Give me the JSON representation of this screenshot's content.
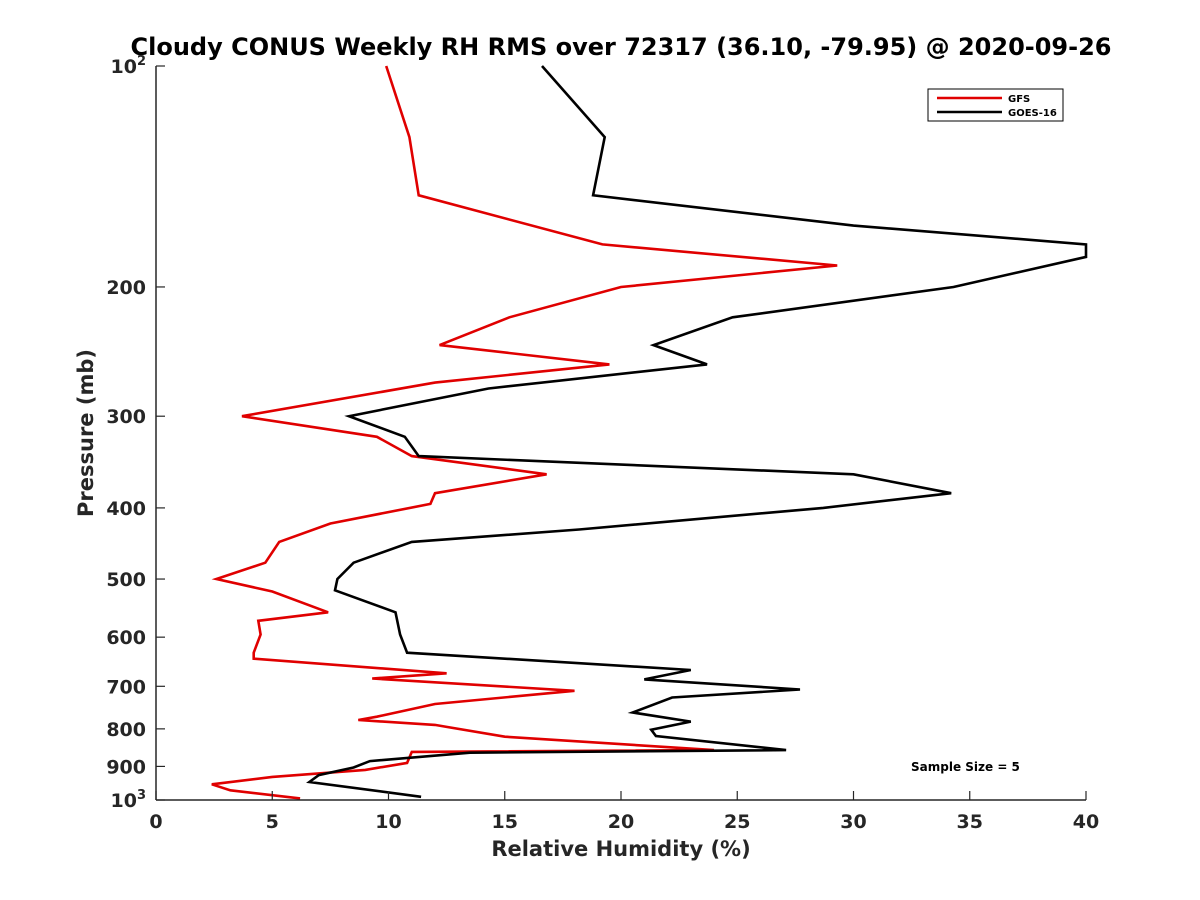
{
  "chart_data": {
    "type": "line",
    "title": "Cloudy CONUS Weekly RH RMS over 72317 (36.10, -79.95) @ 2020-09-26",
    "xlabel": "Relative Humidity (%)",
    "ylabel": "Pressure (mb)",
    "xlim": [
      0,
      40
    ],
    "ylim": [
      100,
      1000
    ],
    "y_scale": "log",
    "y_reversed": true,
    "grid": false,
    "legend_position": "top-right",
    "annotation": "Sample Size = 5",
    "x_ticks": [
      0,
      5,
      10,
      15,
      20,
      25,
      30,
      35,
      40
    ],
    "y_ticks": [
      {
        "value": 100,
        "base": "10",
        "exp": "2"
      },
      {
        "value": 200,
        "label": "200"
      },
      {
        "value": 300,
        "label": "300"
      },
      {
        "value": 400,
        "label": "400"
      },
      {
        "value": 500,
        "label": "500"
      },
      {
        "value": 600,
        "label": "600"
      },
      {
        "value": 700,
        "label": "700"
      },
      {
        "value": 800,
        "label": "800"
      },
      {
        "value": 900,
        "label": "900"
      },
      {
        "value": 1000,
        "base": "10",
        "exp": "3"
      }
    ],
    "series": [
      {
        "name": "GFS",
        "color": "#e00000",
        "points": [
          [
            9.9,
            100
          ],
          [
            10.9,
            125
          ],
          [
            11.3,
            150
          ],
          [
            19.2,
            175
          ],
          [
            29.3,
            187
          ],
          [
            20.0,
            200
          ],
          [
            15.2,
            220
          ],
          [
            12.2,
            240
          ],
          [
            19.5,
            255
          ],
          [
            12.0,
            270
          ],
          [
            3.7,
            300
          ],
          [
            9.5,
            320
          ],
          [
            11.0,
            340
          ],
          [
            16.8,
            360
          ],
          [
            12.0,
            382
          ],
          [
            11.8,
            395
          ],
          [
            7.5,
            420
          ],
          [
            5.3,
            445
          ],
          [
            4.7,
            475
          ],
          [
            2.6,
            500
          ],
          [
            5.0,
            520
          ],
          [
            7.4,
            555
          ],
          [
            4.4,
            570
          ],
          [
            4.5,
            595
          ],
          [
            4.2,
            630
          ],
          [
            4.2,
            642
          ],
          [
            12.5,
            672
          ],
          [
            9.3,
            683
          ],
          [
            18.0,
            710
          ],
          [
            12.0,
            740
          ],
          [
            9.5,
            770
          ],
          [
            8.7,
            778
          ],
          [
            12.0,
            790
          ],
          [
            12.5,
            795
          ],
          [
            15.0,
            820
          ],
          [
            24.0,
            855
          ],
          [
            11.0,
            860
          ],
          [
            10.8,
            890
          ],
          [
            9.0,
            910
          ],
          [
            5.0,
            930
          ],
          [
            2.4,
            952
          ],
          [
            3.2,
            970
          ],
          [
            6.2,
            995
          ]
        ]
      },
      {
        "name": "GOES-16",
        "color": "#000000",
        "points": [
          [
            16.6,
            100
          ],
          [
            19.3,
            125
          ],
          [
            18.8,
            150
          ],
          [
            30.0,
            165
          ],
          [
            40.0,
            175
          ],
          [
            40.0,
            182
          ],
          [
            34.3,
            200
          ],
          [
            24.8,
            220
          ],
          [
            21.4,
            240
          ],
          [
            23.7,
            255
          ],
          [
            14.3,
            275
          ],
          [
            8.3,
            300
          ],
          [
            10.7,
            320
          ],
          [
            11.3,
            340
          ],
          [
            30.0,
            360
          ],
          [
            34.2,
            382
          ],
          [
            28.7,
            400
          ],
          [
            18.2,
            428
          ],
          [
            11.0,
            445
          ],
          [
            8.5,
            475
          ],
          [
            7.8,
            500
          ],
          [
            7.7,
            518
          ],
          [
            10.3,
            555
          ],
          [
            10.5,
            595
          ],
          [
            10.8,
            630
          ],
          [
            23.0,
            665
          ],
          [
            21.0,
            685
          ],
          [
            27.7,
            707
          ],
          [
            22.2,
            725
          ],
          [
            20.5,
            760
          ],
          [
            23.0,
            782
          ],
          [
            21.3,
            802
          ],
          [
            21.5,
            818
          ],
          [
            27.1,
            855
          ],
          [
            13.5,
            862
          ],
          [
            9.2,
            885
          ],
          [
            8.5,
            903
          ],
          [
            7.0,
            925
          ],
          [
            6.6,
            945
          ],
          [
            11.4,
            990
          ]
        ]
      }
    ]
  }
}
